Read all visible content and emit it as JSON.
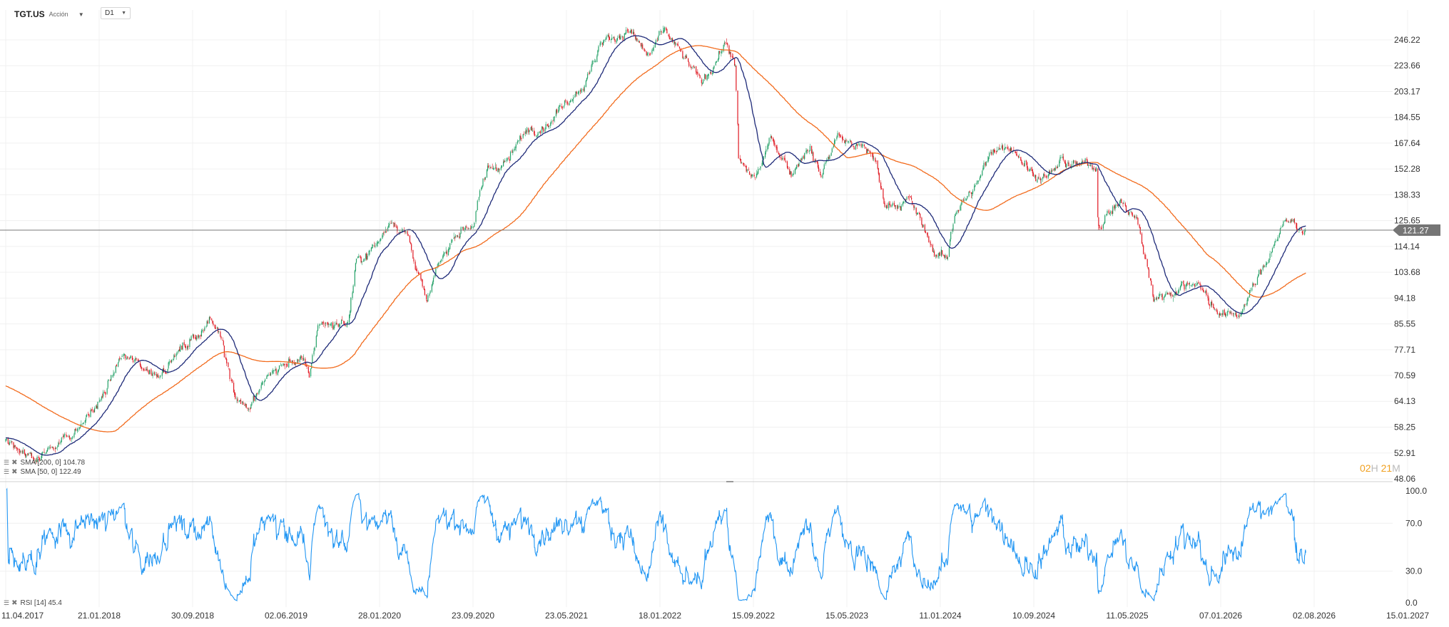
{
  "header": {
    "symbol": "TGT.US",
    "asset_type": "Acción",
    "timeframe": "D1"
  },
  "indicators": {
    "sma200_label": "SMA [200, 0] 104.78",
    "sma50_label": "SMA [50, 0] 122.49",
    "rsi_label": "RSI [14] 45.4"
  },
  "timer": {
    "hours": "02",
    "h_unit": "H",
    "minutes": "21",
    "m_unit": "M"
  },
  "colors": {
    "up_candle": "#26a269",
    "down_candle": "#e01b24",
    "sma50": "#1e2a78",
    "sma200": "#f26b1d",
    "rsi": "#2196f3",
    "price_badge": "#757575",
    "grid": "#f0f0f0"
  },
  "chart_data": [
    {
      "type": "candlestick",
      "scale": "log",
      "x_labels": [
        "11.04.2017",
        "21.01.2018",
        "30.09.2018",
        "02.06.2019",
        "28.01.2020",
        "23.09.2020",
        "23.05.2021",
        "18.01.2022",
        "15.09.2022",
        "15.05.2023",
        "11.01.2024",
        "10.09.2024",
        "11.05.2025",
        "07.01.2026",
        "02.08.2026",
        "15.01.2027"
      ],
      "y_ticks": [
        "246.22",
        "223.66",
        "203.17",
        "184.55",
        "167.64",
        "152.28",
        "138.33",
        "125.65",
        "114.14",
        "103.68",
        "94.18",
        "85.55",
        "77.71",
        "70.59",
        "64.13",
        "58.25",
        "52.91",
        "48.06"
      ],
      "ylim": [
        48.06,
        271.0
      ],
      "last_price": 121.27,
      "price_waypoints": [
        [
          "2017-04-11",
          55.0
        ],
        [
          "2017-07-01",
          52.5
        ],
        [
          "2017-10-15",
          58.0
        ],
        [
          "2017-12-15",
          65.0
        ],
        [
          "2018-02-01",
          76.0
        ],
        [
          "2018-05-01",
          71.0
        ],
        [
          "2018-08-01",
          81.0
        ],
        [
          "2018-09-15",
          86.5
        ],
        [
          "2018-10-15",
          82.0
        ],
        [
          "2018-11-15",
          66.0
        ],
        [
          "2018-12-24",
          62.5
        ],
        [
          "2019-02-15",
          71.5
        ],
        [
          "2019-05-01",
          75.5
        ],
        [
          "2019-05-25",
          70.0
        ],
        [
          "2019-06-15",
          85.5
        ],
        [
          "2019-09-01",
          86.0
        ],
        [
          "2019-09-20",
          107.0
        ],
        [
          "2019-11-20",
          116.5
        ],
        [
          "2019-12-20",
          127.5
        ],
        [
          "2020-02-01",
          118.0
        ],
        [
          "2020-03-18",
          92.0
        ],
        [
          "2020-04-20",
          107.0
        ],
        [
          "2020-06-01",
          120.5
        ],
        [
          "2020-07-15",
          125.0
        ],
        [
          "2020-08-20",
          152.0
        ],
        [
          "2020-10-15",
          158.0
        ],
        [
          "2020-12-01",
          178.0
        ],
        [
          "2021-02-01",
          182.0
        ],
        [
          "2021-03-01",
          196.0
        ],
        [
          "2021-05-01",
          212.0
        ],
        [
          "2021-06-01",
          243.0
        ],
        [
          "2021-08-15",
          256.0
        ],
        [
          "2021-10-01",
          231.0
        ],
        [
          "2021-11-15",
          254.0
        ],
        [
          "2022-01-01",
          230.0
        ],
        [
          "2022-02-15",
          209.0
        ],
        [
          "2022-04-01",
          234.0
        ],
        [
          "2022-04-20",
          245.0
        ],
        [
          "2022-05-15",
          216.0
        ],
        [
          "2022-05-20",
          156.0
        ],
        [
          "2022-07-01",
          147.0
        ],
        [
          "2022-08-15",
          171.0
        ],
        [
          "2022-10-01",
          150.0
        ],
        [
          "2022-11-15",
          167.0
        ],
        [
          "2022-12-15",
          148.0
        ],
        [
          "2023-01-25",
          172.0
        ],
        [
          "2023-03-15",
          166.0
        ],
        [
          "2023-05-01",
          160.0
        ],
        [
          "2023-05-25",
          134.0
        ],
        [
          "2023-08-01",
          135.0
        ],
        [
          "2023-10-01",
          112.0
        ],
        [
          "2023-11-01",
          108.0
        ],
        [
          "2023-11-20",
          130.0
        ],
        [
          "2024-01-10",
          141.0
        ],
        [
          "2024-03-01",
          165.0
        ],
        [
          "2024-04-15",
          167.0
        ],
        [
          "2024-06-01",
          151.0
        ],
        [
          "2024-07-15",
          147.0
        ],
        [
          "2024-08-20",
          157.0
        ],
        [
          "2024-10-01",
          154.0
        ],
        [
          "2024-11-15",
          155.0
        ],
        [
          "2024-11-20",
          124.0
        ],
        [
          "2025-01-15",
          135.0
        ],
        [
          "2025-03-01",
          125.0
        ],
        [
          "2025-04-10",
          94.0
        ],
        [
          "2025-06-01",
          97.0
        ],
        [
          "2025-08-01",
          101.0
        ],
        [
          "2025-09-01",
          92.0
        ],
        [
          "2025-10-15",
          88.0
        ],
        [
          "2025-11-15",
          89.0
        ],
        [
          "2026-01-01",
          101.0
        ],
        [
          "2026-02-01",
          112.0
        ],
        [
          "2026-03-01",
          123.0
        ],
        [
          "2026-04-01",
          125.0
        ],
        [
          "2026-05-01",
          121.27
        ]
      ],
      "sma_series": [
        {
          "name": "SMA [200, 0]",
          "value": 104.78
        },
        {
          "name": "SMA [50, 0]",
          "value": 122.49
        }
      ]
    },
    {
      "type": "line",
      "series_name": "RSI [14]",
      "last_value": 45.4,
      "y_ticks": [
        "100.0",
        "70.0",
        "30.0",
        "0.0"
      ],
      "ylim": [
        0,
        100
      ]
    }
  ]
}
